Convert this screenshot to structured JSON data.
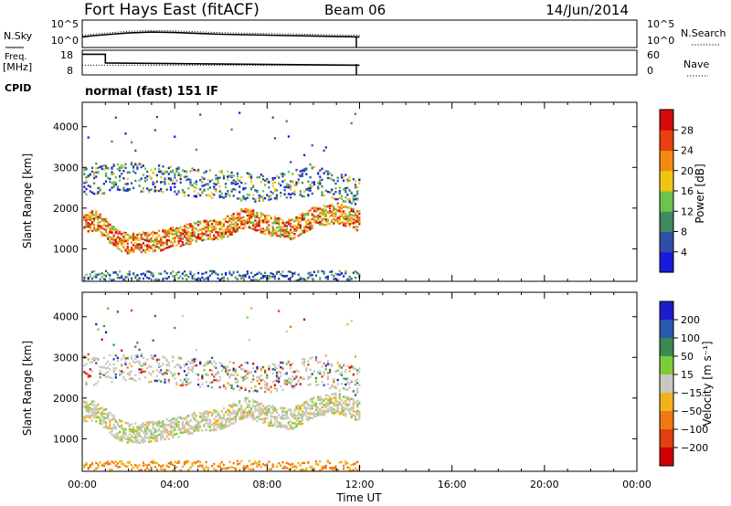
{
  "header": {
    "station": "Fort Hays East (fitACF)",
    "beam": "Beam 06",
    "date": "14/Jun/2014"
  },
  "colors": {
    "power": [
      "#1a1adc",
      "#2f4ea8",
      "#3f8a60",
      "#6cc24a",
      "#f2c416",
      "#f28a10",
      "#e84010",
      "#d80a0a"
    ],
    "velocity": [
      "#1c1ccc",
      "#2b57b0",
      "#3a8a50",
      "#7ccc3a",
      "#c8c8c0",
      "#f2b21a",
      "#ef7810",
      "#e04010",
      "#d00000"
    ]
  },
  "chart_data": [
    {
      "type": "line",
      "id": "noise",
      "ylabel_left": "N.Sky",
      "ylabel_right": "N.Search",
      "left_ticks": [
        "10^5",
        "10^0"
      ],
      "right_ticks": [
        "10^5",
        "10^0"
      ],
      "right_legend_style": "dotted",
      "x": [
        0.0,
        0.5,
        1.0,
        1.5,
        2.0,
        3.0,
        4.0,
        5.0,
        6.0,
        7.0,
        8.0,
        9.0,
        10.0,
        11.0,
        12.0
      ],
      "sky_log10": [
        2.0,
        2.3,
        2.5,
        2.7,
        2.9,
        3.1,
        3.0,
        2.8,
        2.6,
        2.5,
        2.4,
        2.3,
        2.2,
        2.1,
        2.0
      ],
      "ylim": [
        0,
        5
      ]
    },
    {
      "type": "line",
      "id": "freq-nave",
      "ylabel_left": "Freq.",
      "ylabel_left_unit": "[MHz]",
      "ylabel_right": "Nave",
      "left_ticks": [
        "18",
        "8"
      ],
      "right_ticks": [
        "60",
        "0"
      ],
      "right_legend_style": "dotted",
      "x": [
        0.0,
        1.0,
        1.0,
        12.0
      ],
      "freq": [
        17.0,
        17.0,
        13.0,
        12.0
      ],
      "nave": [
        24,
        24,
        24,
        24
      ],
      "ylim_left": [
        8,
        18
      ],
      "ylim_right": [
        0,
        60
      ]
    },
    {
      "type": "heatmap",
      "id": "power",
      "cpid_label": "CPID",
      "cpid_value": "normal (fast) 151 IF",
      "ylabel": "Slant Range [km]",
      "yticks": [
        "1000",
        "2000",
        "3000",
        "4000"
      ],
      "ylim": [
        200,
        4600
      ],
      "xlim": [
        0,
        24
      ],
      "colorbar_label": "Power [dB]",
      "colorbar_ticks": [
        "4",
        "8",
        "12",
        "16",
        "20",
        "24",
        "28"
      ],
      "colorbar_range": [
        0,
        32
      ],
      "main_band": {
        "x": [
          0.0,
          0.6,
          1.0,
          1.5,
          2.0,
          3.0,
          4.0,
          5.0,
          6.0,
          7.0,
          8.0,
          9.0,
          10.0,
          11.0,
          12.0
        ],
        "range_km": [
          1700,
          1700,
          1500,
          1250,
          1150,
          1200,
          1300,
          1450,
          1500,
          1800,
          1600,
          1500,
          1800,
          1900,
          1700
        ]
      },
      "upper_band": {
        "x": [
          0.5,
          2.0,
          4.0,
          6.0,
          8.0,
          10.0,
          12.0
        ],
        "range_km": [
          2700,
          2800,
          2700,
          2600,
          2500,
          2700,
          2400
        ]
      }
    },
    {
      "type": "heatmap",
      "id": "velocity",
      "ylabel": "Slant Range [km]",
      "yticks": [
        "1000",
        "2000",
        "3000",
        "4000"
      ],
      "ylim": [
        200,
        4600
      ],
      "xlim": [
        0,
        24
      ],
      "xticks": [
        "00:00",
        "04:00",
        "08:00",
        "12:00",
        "16:00",
        "20:00",
        "00:00"
      ],
      "xlabel": "Time UT",
      "colorbar_label": "Velocity [m s⁻¹]",
      "colorbar_ticks": [
        "200",
        "100",
        "50",
        "15",
        "−15",
        "−50",
        "−100",
        "−200"
      ]
    }
  ]
}
